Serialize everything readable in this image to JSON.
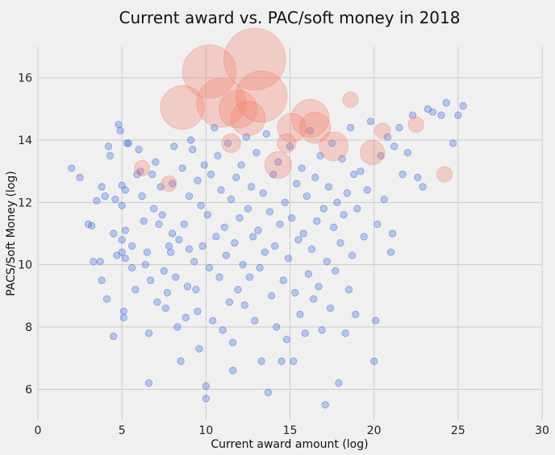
{
  "chart_data": {
    "type": "scatter",
    "title": "Current award vs. PAC/soft money in 2018",
    "xlabel": "Current award amount (log)",
    "ylabel": "PACS/Soft Money (log)",
    "xlim": [
      0,
      30
    ],
    "ylim": [
      5,
      17
    ],
    "xticks": [
      "0",
      "5",
      "10",
      "15",
      "20",
      "25",
      "30"
    ],
    "yticks": [
      "6",
      "8",
      "10",
      "12",
      "14",
      "16"
    ],
    "grid": true,
    "colors": {
      "background": "#f0f0f0",
      "grid": "#cbcbcb",
      "point_small": "#3d6ae0",
      "point_large": "#f47a68"
    },
    "series": [
      {
        "points": [
          [
            2,
            13.1
          ],
          [
            2.5,
            12.8
          ],
          [
            3,
            11.3
          ],
          [
            3.2,
            11.25
          ],
          [
            3.3,
            10.1
          ],
          [
            3.5,
            12.05
          ],
          [
            3.7,
            10.1
          ],
          [
            3.8,
            9.5
          ],
          [
            3.8,
            12.5
          ],
          [
            4,
            12.2
          ],
          [
            4.1,
            8.9
          ],
          [
            4.2,
            13.8
          ],
          [
            4.3,
            13.5
          ],
          [
            4.5,
            11.0
          ],
          [
            4.5,
            7.7
          ],
          [
            4.6,
            12.1
          ],
          [
            4.7,
            10.3
          ],
          [
            4.8,
            14.5
          ],
          [
            4.9,
            14.3
          ],
          [
            5.0,
            12.55
          ],
          [
            5.0,
            11.9
          ],
          [
            5.0,
            10.8
          ],
          [
            5.0,
            10.4
          ],
          [
            5.1,
            8.5
          ],
          [
            5.1,
            8.3
          ],
          [
            5.2,
            11.1
          ],
          [
            5.2,
            10.2
          ],
          [
            5.2,
            12.4
          ],
          [
            5.3,
            13.9
          ],
          [
            5.4,
            13.9
          ],
          [
            5.6,
            9.9
          ],
          [
            5.6,
            10.6
          ],
          [
            5.8,
            9.2
          ],
          [
            5.9,
            12.9
          ],
          [
            6.0,
            13.7
          ],
          [
            6.1,
            13.0
          ],
          [
            6.2,
            12.2
          ],
          [
            6.3,
            11.4
          ],
          [
            6.4,
            10.0
          ],
          [
            6.5,
            10.4
          ],
          [
            6.6,
            6.2
          ],
          [
            6.6,
            7.8
          ],
          [
            6.7,
            9.5
          ],
          [
            6.8,
            12.9
          ],
          [
            6.9,
            11.8
          ],
          [
            7.0,
            13.3
          ],
          [
            7.1,
            8.8
          ],
          [
            7.2,
            11.3
          ],
          [
            7.3,
            12.5
          ],
          [
            7.4,
            11.6
          ],
          [
            7.5,
            9.8
          ],
          [
            7.6,
            8.6
          ],
          [
            7.7,
            9.1
          ],
          [
            7.8,
            10.6
          ],
          [
            7.9,
            10.4
          ],
          [
            8.0,
            12.6
          ],
          [
            8.0,
            11.0
          ],
          [
            8.1,
            13.8
          ],
          [
            8.2,
            9.6
          ],
          [
            8.3,
            8.0
          ],
          [
            8.4,
            10.8
          ],
          [
            8.5,
            6.9
          ],
          [
            8.6,
            13.1
          ],
          [
            8.7,
            11.3
          ],
          [
            8.8,
            8.3
          ],
          [
            8.9,
            9.3
          ],
          [
            9.0,
            10.5
          ],
          [
            9.0,
            12.2
          ],
          [
            9.1,
            14.0
          ],
          [
            9.2,
            13.7
          ],
          [
            9.3,
            10.1
          ],
          [
            9.4,
            9.2
          ],
          [
            9.5,
            8.5
          ],
          [
            9.5,
            12.7
          ],
          [
            9.6,
            7.3
          ],
          [
            9.7,
            11.9
          ],
          [
            9.8,
            10.6
          ],
          [
            9.9,
            13.2
          ],
          [
            10.0,
            6.1
          ],
          [
            10.0,
            5.7
          ],
          [
            10.1,
            11.6
          ],
          [
            10.2,
            9.9
          ],
          [
            10.3,
            12.9
          ],
          [
            10.4,
            8.2
          ],
          [
            10.5,
            14.4
          ],
          [
            10.6,
            10.9
          ],
          [
            10.7,
            13.5
          ],
          [
            10.8,
            9.6
          ],
          [
            10.9,
            12.4
          ],
          [
            11.0,
            7.9
          ],
          [
            11.1,
            11.2
          ],
          [
            11.2,
            10.3
          ],
          [
            11.3,
            13.9
          ],
          [
            11.4,
            8.8
          ],
          [
            11.5,
            12.1
          ],
          [
            11.6,
            6.6
          ],
          [
            11.6,
            7.5
          ],
          [
            11.7,
            10.7
          ],
          [
            11.8,
            12.8
          ],
          [
            11.9,
            9.2
          ],
          [
            12.0,
            11.5
          ],
          [
            12.1,
            13.2
          ],
          [
            12.2,
            10.0
          ],
          [
            12.3,
            8.7
          ],
          [
            12.4,
            14.1
          ],
          [
            12.5,
            11.8
          ],
          [
            12.6,
            9.6
          ],
          [
            12.7,
            12.5
          ],
          [
            12.8,
            10.9
          ],
          [
            12.9,
            8.2
          ],
          [
            13.0,
            13.6
          ],
          [
            13.1,
            11.1
          ],
          [
            13.2,
            9.9
          ],
          [
            13.3,
            6.9
          ],
          [
            13.4,
            12.3
          ],
          [
            13.5,
            10.4
          ],
          [
            13.6,
            14.2
          ],
          [
            13.7,
            5.9
          ],
          [
            13.8,
            11.7
          ],
          [
            13.9,
            9.0
          ],
          [
            14.0,
            12.9
          ],
          [
            14.1,
            10.6
          ],
          [
            14.2,
            8.0
          ],
          [
            14.3,
            13.3
          ],
          [
            14.4,
            11.3
          ],
          [
            14.5,
            6.9
          ],
          [
            14.6,
            9.5
          ],
          [
            14.7,
            12.0
          ],
          [
            14.8,
            7.6
          ],
          [
            14.9,
            10.2
          ],
          [
            15.0,
            13.8
          ],
          [
            15.1,
            11.5
          ],
          [
            15.2,
            6.9
          ],
          [
            15.3,
            9.1
          ],
          [
            15.4,
            12.6
          ],
          [
            15.5,
            10.8
          ],
          [
            15.6,
            8.4
          ],
          [
            15.7,
            13.1
          ],
          [
            15.8,
            11.0
          ],
          [
            15.9,
            7.8
          ],
          [
            16.0,
            12.2
          ],
          [
            16.1,
            9.7
          ],
          [
            16.2,
            14.3
          ],
          [
            16.3,
            10.5
          ],
          [
            16.4,
            8.9
          ],
          [
            16.5,
            12.8
          ],
          [
            16.6,
            11.4
          ],
          [
            16.7,
            9.3
          ],
          [
            16.8,
            13.5
          ],
          [
            16.9,
            7.9
          ],
          [
            17.0,
            11.8
          ],
          [
            17.1,
            5.5
          ],
          [
            17.2,
            10.1
          ],
          [
            17.3,
            12.5
          ],
          [
            17.4,
            8.6
          ],
          [
            17.5,
            13.9
          ],
          [
            17.6,
            11.2
          ],
          [
            17.7,
            9.8
          ],
          [
            17.8,
            12.0
          ],
          [
            17.9,
            6.2
          ],
          [
            18.0,
            10.7
          ],
          [
            18.1,
            13.4
          ],
          [
            18.2,
            11.6
          ],
          [
            18.3,
            7.8
          ],
          [
            18.4,
            12.3
          ],
          [
            18.5,
            9.2
          ],
          [
            18.6,
            14.4
          ],
          [
            18.7,
            10.3
          ],
          [
            18.8,
            12.9
          ],
          [
            18.9,
            8.4
          ],
          [
            19.0,
            11.8
          ],
          [
            19.2,
            13.0
          ],
          [
            19.4,
            10.9
          ],
          [
            19.6,
            12.4
          ],
          [
            19.8,
            14.6
          ],
          [
            20.0,
            6.9
          ],
          [
            20.1,
            8.2
          ],
          [
            20.2,
            11.3
          ],
          [
            20.4,
            13.5
          ],
          [
            20.6,
            12.1
          ],
          [
            20.8,
            14.1
          ],
          [
            21.0,
            10.4
          ],
          [
            21.1,
            11.0
          ],
          [
            21.2,
            13.8
          ],
          [
            21.5,
            14.4
          ],
          [
            21.7,
            12.9
          ],
          [
            22.0,
            13.6
          ],
          [
            22.3,
            14.8
          ],
          [
            22.6,
            12.8
          ],
          [
            22.9,
            12.5
          ],
          [
            23.2,
            15.0
          ],
          [
            23.5,
            14.9
          ],
          [
            24.0,
            14.8
          ],
          [
            24.3,
            15.2
          ],
          [
            24.7,
            13.9
          ],
          [
            25.0,
            14.8
          ],
          [
            25.3,
            15.1
          ]
        ]
      },
      {
        "points": [
          [
            10.2,
            16.2,
            12
          ],
          [
            12.9,
            16.6,
            16
          ],
          [
            10.9,
            15.2,
            10
          ],
          [
            8.6,
            15.05,
            8
          ],
          [
            13.3,
            15.4,
            11
          ],
          [
            11.9,
            15.0,
            6
          ],
          [
            12.5,
            14.7,
            5
          ],
          [
            16.2,
            14.7,
            6
          ],
          [
            16.5,
            14.4,
            4
          ],
          [
            15.1,
            14.4,
            3.5
          ],
          [
            17.6,
            13.8,
            3.5
          ],
          [
            14.3,
            13.2,
            3
          ],
          [
            19.9,
            13.6,
            2.5
          ],
          [
            11.5,
            13.9,
            1.5
          ],
          [
            14.8,
            13.9,
            1.5
          ],
          [
            6.2,
            13.1,
            1
          ],
          [
            7.8,
            12.6,
            1
          ],
          [
            24.2,
            12.9,
            1
          ],
          [
            22.5,
            14.5,
            1
          ],
          [
            20.5,
            14.3,
            1
          ],
          [
            18.6,
            15.3,
            1
          ]
        ]
      }
    ]
  }
}
